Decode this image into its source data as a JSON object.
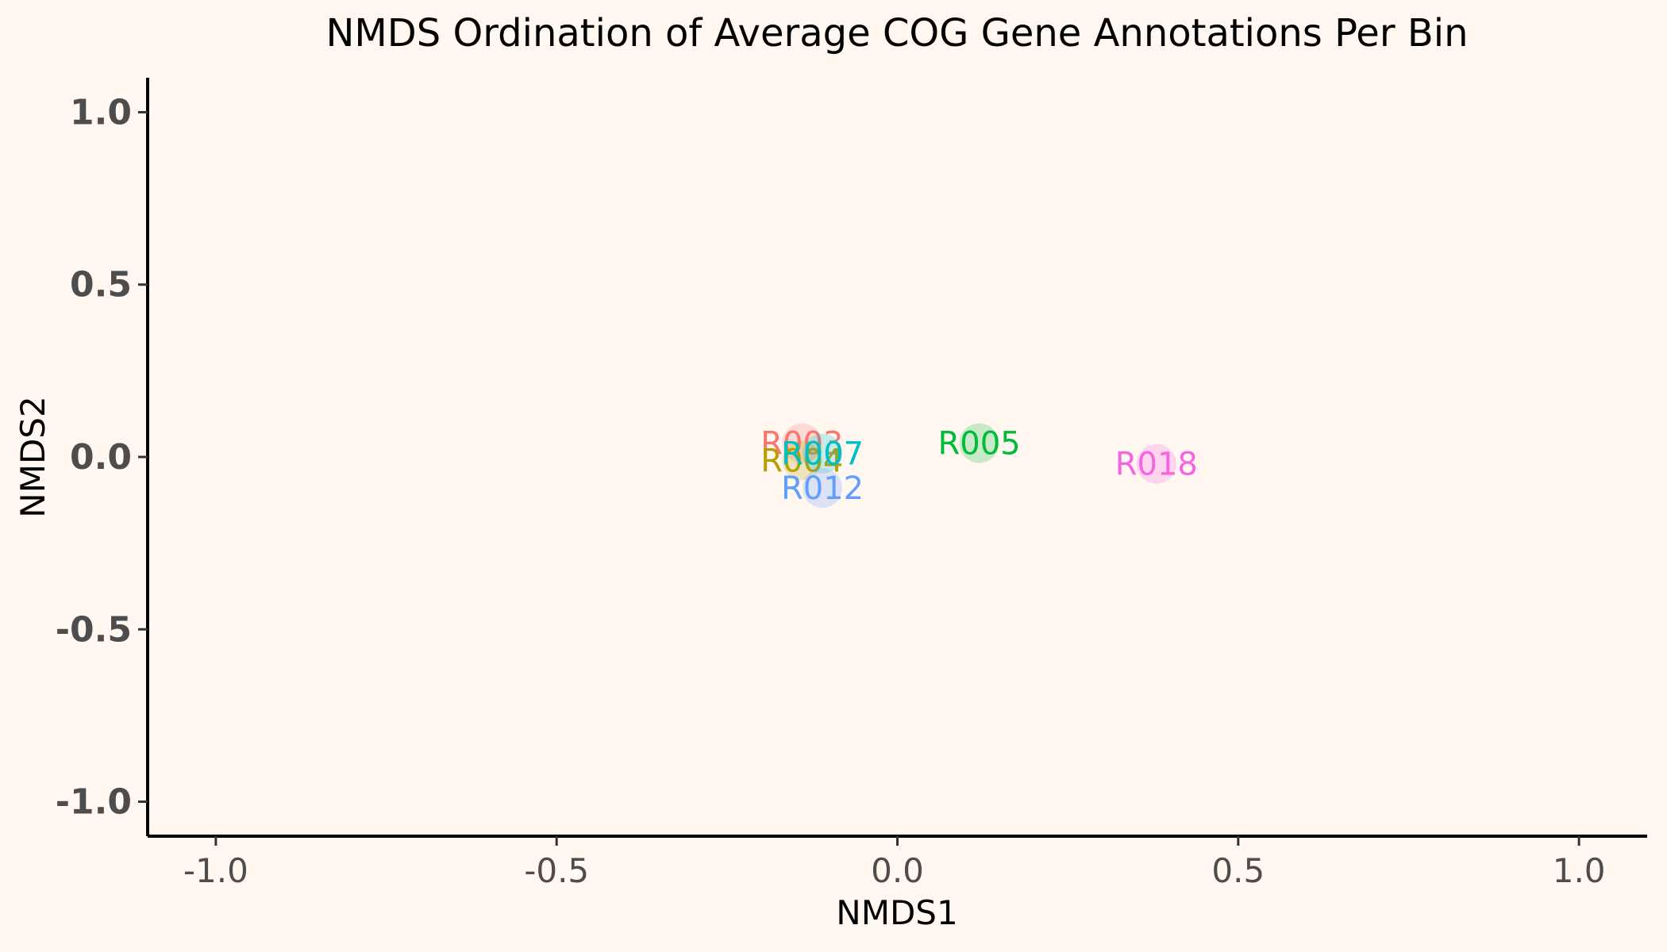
{
  "chart_data": {
    "type": "scatter",
    "title": "NMDS Ordination of Average COG Gene Annotations Per Bin",
    "xlabel": "NMDS1",
    "ylabel": "NMDS2",
    "xlim": [
      -1.1,
      1.1
    ],
    "ylim": [
      -1.1,
      1.1
    ],
    "xticks": [
      "-1.0",
      "-0.5",
      "0.0",
      "0.5",
      "1.0"
    ],
    "yticks": [
      "1.0",
      "0.5",
      "0.0",
      "-0.5",
      "-1.0"
    ],
    "grid": false,
    "legend": "none",
    "background_color": "#fff7f0",
    "points": [
      {
        "label": "R003",
        "x": -0.14,
        "y": 0.04,
        "color": "#f8766d"
      },
      {
        "label": "R004",
        "x": -0.14,
        "y": -0.01,
        "color": "#b79f00"
      },
      {
        "label": "R005",
        "x": 0.12,
        "y": 0.04,
        "color": "#00ba38"
      },
      {
        "label": "R007",
        "x": -0.11,
        "y": 0.01,
        "color": "#00bfc4"
      },
      {
        "label": "R012",
        "x": -0.11,
        "y": -0.09,
        "color": "#619cff"
      },
      {
        "label": "R018",
        "x": 0.38,
        "y": -0.02,
        "color": "#f564e3"
      }
    ]
  }
}
